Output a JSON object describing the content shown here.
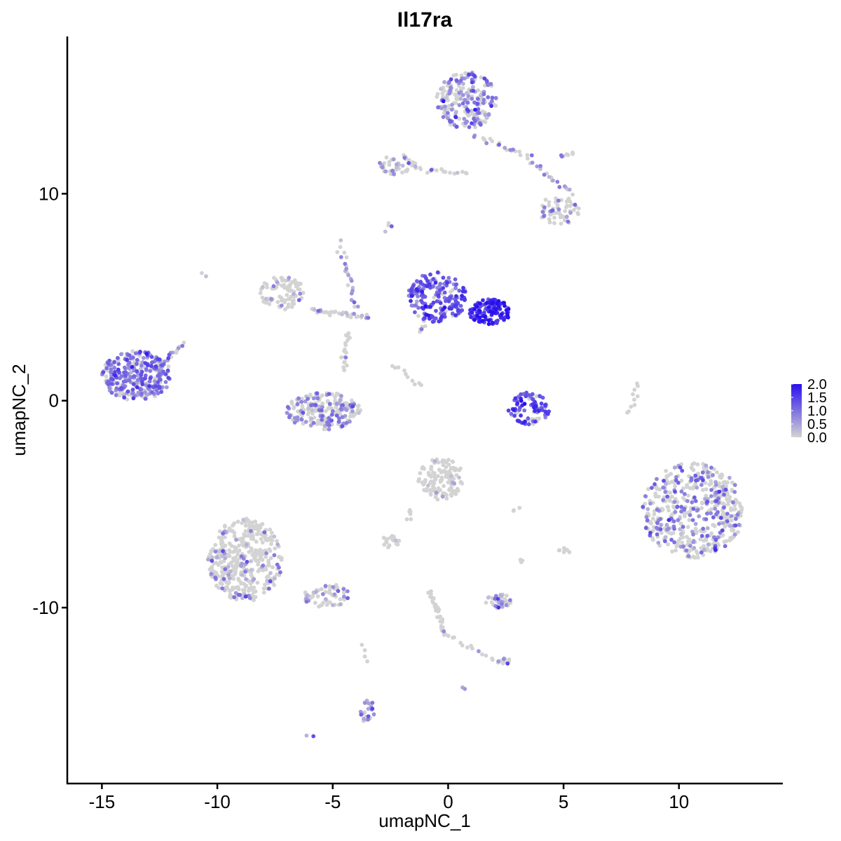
{
  "chart_data": {
    "type": "scatter",
    "title": "Il17ra",
    "xlabel": "umapNC_1",
    "ylabel": "umapNC_2",
    "xlim": [
      -16.5,
      14.5
    ],
    "ylim": [
      -18.5,
      17.6
    ],
    "x_ticks": [
      -15,
      -10,
      -5,
      0,
      5,
      10
    ],
    "x_tick_labels": [
      "-15",
      "-10",
      "-5",
      "0",
      "5",
      "10"
    ],
    "y_ticks": [
      -10,
      0,
      10
    ],
    "y_tick_labels": [
      "-10",
      "0",
      "10"
    ],
    "grid": false,
    "legend_position": "right",
    "color_low": "#d3d3d3",
    "color_high": "#2a10ee",
    "legend": {
      "min": 0,
      "max": 2,
      "ticks": [
        2.0,
        1.5,
        1.0,
        0.5,
        0.0
      ],
      "labels": [
        "2.0",
        "1.5",
        "1.0",
        "0.5",
        "0.0"
      ]
    },
    "clusters": [
      {
        "cx": -13.5,
        "cy": 1.2,
        "rx": 1.5,
        "ry": 1.2,
        "n": 320,
        "expr_frac": 0.75,
        "expr_mean": 0.9
      },
      {
        "cx": -5.4,
        "cy": -0.5,
        "rx": 1.6,
        "ry": 0.9,
        "n": 230,
        "expr_frac": 0.4,
        "expr_mean": 0.7
      },
      {
        "cx": -7.2,
        "cy": 5.2,
        "rx": 1.0,
        "ry": 0.8,
        "n": 90,
        "expr_frac": 0.15,
        "expr_mean": 0.6
      },
      {
        "cx": -0.5,
        "cy": 5.0,
        "rx": 1.3,
        "ry": 1.2,
        "n": 190,
        "expr_frac": 0.85,
        "expr_mean": 1.2
      },
      {
        "cx": 1.8,
        "cy": 4.3,
        "rx": 0.9,
        "ry": 0.6,
        "n": 120,
        "expr_frac": 0.95,
        "expr_mean": 1.7
      },
      {
        "cx": 0.8,
        "cy": 14.5,
        "rx": 1.3,
        "ry": 1.4,
        "n": 220,
        "expr_frac": 0.55,
        "expr_mean": 0.8
      },
      {
        "cx": -2.2,
        "cy": 11.4,
        "rx": 0.8,
        "ry": 0.5,
        "n": 45,
        "expr_frac": 0.3,
        "expr_mean": 0.6
      },
      {
        "cx": 4.8,
        "cy": 9.2,
        "rx": 0.9,
        "ry": 0.7,
        "n": 60,
        "expr_frac": 0.3,
        "expr_mean": 0.7
      },
      {
        "cx": 3.5,
        "cy": -0.4,
        "rx": 0.9,
        "ry": 0.8,
        "n": 90,
        "expr_frac": 0.7,
        "expr_mean": 1.3
      },
      {
        "cx": 10.6,
        "cy": -5.3,
        "rx": 2.2,
        "ry": 2.3,
        "n": 520,
        "expr_frac": 0.35,
        "expr_mean": 0.8
      },
      {
        "cx": -0.3,
        "cy": -3.8,
        "rx": 1.0,
        "ry": 1.0,
        "n": 130,
        "expr_frac": 0.06,
        "expr_mean": 0.5
      },
      {
        "cx": -8.8,
        "cy": -7.7,
        "rx": 1.6,
        "ry": 2.0,
        "n": 420,
        "expr_frac": 0.2,
        "expr_mean": 0.6
      },
      {
        "cx": -5.3,
        "cy": -9.4,
        "rx": 1.0,
        "ry": 0.6,
        "n": 60,
        "expr_frac": 0.3,
        "expr_mean": 0.6
      },
      {
        "cx": 2.2,
        "cy": -9.7,
        "rx": 0.6,
        "ry": 0.35,
        "n": 40,
        "expr_frac": 0.5,
        "expr_mean": 0.7
      },
      {
        "cx": -2.5,
        "cy": -6.8,
        "rx": 0.4,
        "ry": 0.3,
        "n": 20,
        "expr_frac": 0.05,
        "expr_mean": 0.5
      },
      {
        "cx": -3.5,
        "cy": -15.0,
        "rx": 0.3,
        "ry": 0.6,
        "n": 25,
        "expr_frac": 0.5,
        "expr_mean": 0.7
      },
      {
        "cx": 2.4,
        "cy": -12.6,
        "rx": 0.3,
        "ry": 0.2,
        "n": 12,
        "expr_frac": 0.2,
        "expr_mean": 0.6
      },
      {
        "cx": 5.0,
        "cy": -7.3,
        "rx": 0.3,
        "ry": 0.2,
        "n": 8,
        "expr_frac": 0.0,
        "expr_mean": 0.5
      }
    ],
    "strands": [
      {
        "from": [
          -12.3,
          1.8
        ],
        "to": [
          -11.5,
          2.8
        ],
        "n": 14,
        "expr_frac": 0.6,
        "expr_mean": 0.8
      },
      {
        "from": [
          -5.9,
          4.4
        ],
        "to": [
          -3.5,
          4.0
        ],
        "n": 30,
        "expr_frac": 0.3,
        "expr_mean": 0.6
      },
      {
        "from": [
          -4.7,
          7.6
        ],
        "to": [
          -4.0,
          4.5
        ],
        "n": 22,
        "expr_frac": 0.5,
        "expr_mean": 0.7
      },
      {
        "from": [
          -4.4,
          3.3
        ],
        "to": [
          -4.5,
          1.5
        ],
        "n": 18,
        "expr_frac": 0.1,
        "expr_mean": 0.5
      },
      {
        "from": [
          -2.4,
          1.8
        ],
        "to": [
          -1.1,
          0.7
        ],
        "n": 10,
        "expr_frac": 0.0,
        "expr_mean": 0.5
      },
      {
        "from": [
          -1.2,
          3.3
        ],
        "to": [
          -1.0,
          4.0
        ],
        "n": 8,
        "expr_frac": 0.5,
        "expr_mean": 0.8
      },
      {
        "from": [
          -1.6,
          11.2
        ],
        "to": [
          0.8,
          11.0
        ],
        "n": 18,
        "expr_frac": 0.2,
        "expr_mean": 0.6
      },
      {
        "from": [
          1.2,
          12.8
        ],
        "to": [
          3.5,
          11.8
        ],
        "n": 22,
        "expr_frac": 0.3,
        "expr_mean": 0.6
      },
      {
        "from": [
          3.6,
          11.5
        ],
        "to": [
          5.4,
          10.0
        ],
        "n": 18,
        "expr_frac": 0.3,
        "expr_mean": 0.6
      },
      {
        "from": [
          4.8,
          11.8
        ],
        "to": [
          5.5,
          12.0
        ],
        "n": 8,
        "expr_frac": 0.3,
        "expr_mean": 0.6
      },
      {
        "from": [
          -2.8,
          8.3
        ],
        "to": [
          -2.6,
          8.6
        ],
        "n": 4,
        "expr_frac": 0.5,
        "expr_mean": 0.7
      },
      {
        "from": [
          8.3,
          0.8
        ],
        "to": [
          7.8,
          -0.6
        ],
        "n": 10,
        "expr_frac": 0.0,
        "expr_mean": 0.5
      },
      {
        "from": [
          -0.8,
          -9.2
        ],
        "to": [
          -0.1,
          -11.3
        ],
        "n": 28,
        "expr_frac": 0.1,
        "expr_mean": 0.6
      },
      {
        "from": [
          -0.2,
          -11.3
        ],
        "to": [
          2.0,
          -12.5
        ],
        "n": 14,
        "expr_frac": 0.1,
        "expr_mean": 0.5
      },
      {
        "from": [
          -3.7,
          -11.8
        ],
        "to": [
          -3.6,
          -12.7
        ],
        "n": 4,
        "expr_frac": 0.0,
        "expr_mean": 0.5
      },
      {
        "from": [
          -1.8,
          -5.8
        ],
        "to": [
          -1.5,
          -5.2
        ],
        "n": 6,
        "expr_frac": 0.0,
        "expr_mean": 0.5
      },
      {
        "from": [
          3.0,
          -5.2
        ],
        "to": [
          2.8,
          -5.4
        ],
        "n": 3,
        "expr_frac": 0.0,
        "expr_mean": 0.5
      },
      {
        "from": [
          3.1,
          -7.8
        ],
        "to": [
          3.3,
          -7.6
        ],
        "n": 3,
        "expr_frac": 0.0,
        "expr_mean": 0.5
      },
      {
        "from": [
          -10.6,
          6.1
        ],
        "to": [
          -10.5,
          6.0
        ],
        "n": 2,
        "expr_frac": 0.5,
        "expr_mean": 0.7
      },
      {
        "from": [
          -6.0,
          -16.3
        ],
        "to": [
          -5.9,
          -16.2
        ],
        "n": 2,
        "expr_frac": 1.0,
        "expr_mean": 0.9
      },
      {
        "from": [
          0.6,
          -13.9
        ],
        "to": [
          0.7,
          -14.0
        ],
        "n": 2,
        "expr_frac": 1.0,
        "expr_mean": 0.8
      }
    ]
  }
}
